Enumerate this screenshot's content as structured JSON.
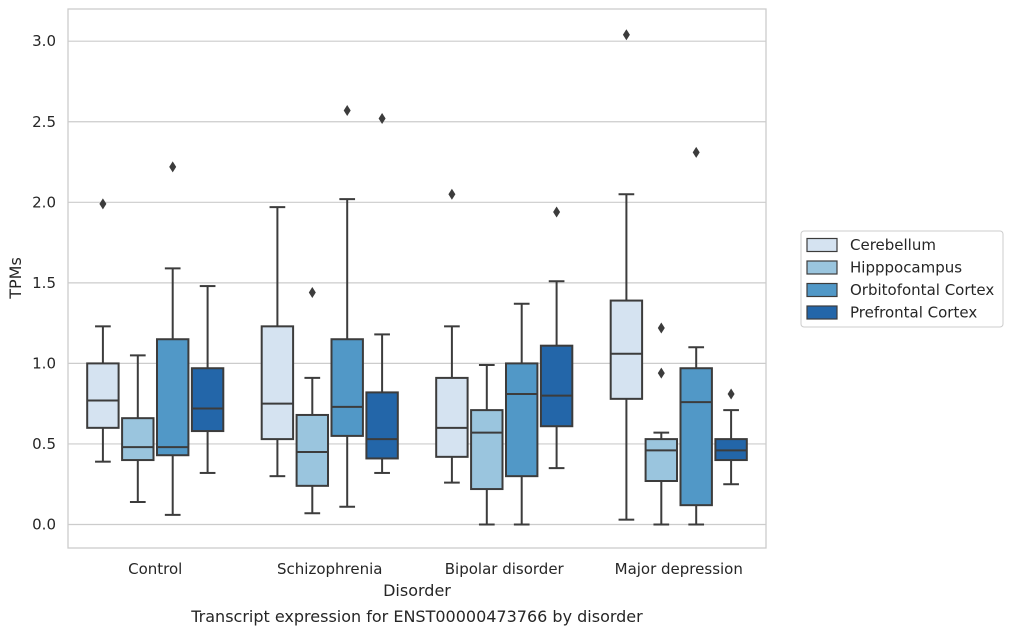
{
  "chart_data": {
    "type": "box",
    "caption": "Transcript expression for ENST00000473766 by disorder",
    "xlabel": "Disorder",
    "ylabel": "TPMs",
    "ylim": [
      -0.15,
      3.2
    ],
    "yticks": [
      "0.0",
      "0.5",
      "1.0",
      "1.5",
      "2.0",
      "2.5",
      "3.0"
    ],
    "grid": "horizontal",
    "legend_position": "right",
    "categories": [
      "Control",
      "Schizophrenia",
      "Bipolar disorder",
      "Major depression"
    ],
    "series": [
      {
        "name": "Cerebellum",
        "color": "#d5e3f1",
        "boxes": [
          {
            "whisker_low": 0.39,
            "q1": 0.6,
            "median": 0.77,
            "q3": 1.0,
            "whisker_high": 1.23,
            "outliers": [
              1.99
            ]
          },
          {
            "whisker_low": 0.3,
            "q1": 0.53,
            "median": 0.75,
            "q3": 1.23,
            "whisker_high": 1.97,
            "outliers": []
          },
          {
            "whisker_low": 0.26,
            "q1": 0.42,
            "median": 0.6,
            "q3": 0.91,
            "whisker_high": 1.23,
            "outliers": [
              2.05
            ]
          },
          {
            "whisker_low": 0.03,
            "q1": 0.78,
            "median": 1.06,
            "q3": 1.39,
            "whisker_high": 2.05,
            "outliers": [
              3.04
            ]
          }
        ]
      },
      {
        "name": "Hipppocampus",
        "color": "#9ac5de",
        "boxes": [
          {
            "whisker_low": 0.14,
            "q1": 0.4,
            "median": 0.48,
            "q3": 0.66,
            "whisker_high": 1.05,
            "outliers": []
          },
          {
            "whisker_low": 0.07,
            "q1": 0.24,
            "median": 0.45,
            "q3": 0.68,
            "whisker_high": 0.91,
            "outliers": [
              1.44
            ]
          },
          {
            "whisker_low": 0.0,
            "q1": 0.22,
            "median": 0.57,
            "q3": 0.71,
            "whisker_high": 0.99,
            "outliers": []
          },
          {
            "whisker_low": 0.0,
            "q1": 0.27,
            "median": 0.46,
            "q3": 0.53,
            "whisker_high": 0.57,
            "outliers": [
              0.94,
              1.22
            ]
          }
        ]
      },
      {
        "name": "Orbitofontal Cortex",
        "color": "#5198c7",
        "boxes": [
          {
            "whisker_low": 0.06,
            "q1": 0.43,
            "median": 0.48,
            "q3": 1.15,
            "whisker_high": 1.59,
            "outliers": [
              2.22
            ]
          },
          {
            "whisker_low": 0.11,
            "q1": 0.55,
            "median": 0.73,
            "q3": 1.15,
            "whisker_high": 2.02,
            "outliers": [
              2.57
            ]
          },
          {
            "whisker_low": 0.0,
            "q1": 0.3,
            "median": 0.81,
            "q3": 1.0,
            "whisker_high": 1.37,
            "outliers": []
          },
          {
            "whisker_low": 0.0,
            "q1": 0.12,
            "median": 0.76,
            "q3": 0.97,
            "whisker_high": 1.1,
            "outliers": [
              2.31
            ]
          }
        ]
      },
      {
        "name": "Prefrontal Cortex",
        "color": "#2366a9",
        "boxes": [
          {
            "whisker_low": 0.32,
            "q1": 0.58,
            "median": 0.72,
            "q3": 0.97,
            "whisker_high": 1.48,
            "outliers": []
          },
          {
            "whisker_low": 0.32,
            "q1": 0.41,
            "median": 0.53,
            "q3": 0.82,
            "whisker_high": 1.18,
            "outliers": [
              2.52
            ]
          },
          {
            "whisker_low": 0.35,
            "q1": 0.61,
            "median": 0.8,
            "q3": 1.11,
            "whisker_high": 1.51,
            "outliers": [
              1.94
            ]
          },
          {
            "whisker_low": 0.25,
            "q1": 0.4,
            "median": 0.46,
            "q3": 0.53,
            "whisker_high": 0.71,
            "outliers": [
              0.81
            ]
          }
        ]
      }
    ]
  }
}
